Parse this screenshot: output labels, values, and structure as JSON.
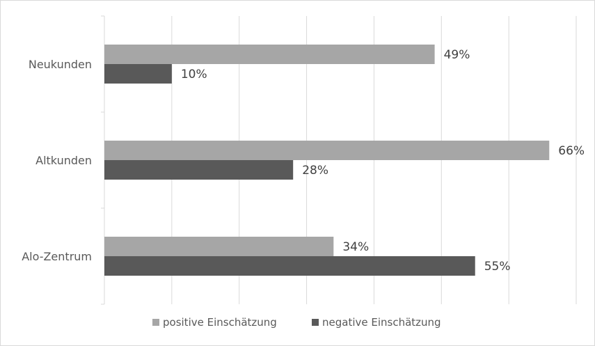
{
  "chart_data": {
    "type": "bar",
    "orientation": "horizontal",
    "categories": [
      "Neukunden",
      "Altkunden",
      "Alo-Zentrum"
    ],
    "series": [
      {
        "name": "positive Einschätzung",
        "values": [
          49,
          66,
          34
        ],
        "labels": [
          "49%",
          "66%",
          "34%"
        ],
        "color": "#a6a6a6"
      },
      {
        "name": "negative Einschätzung",
        "values": [
          10,
          28,
          55
        ],
        "labels": [
          "10%",
          "28%",
          "55%"
        ],
        "color": "#595959"
      }
    ],
    "xlim": [
      0,
      70
    ],
    "x_gridline_step": 10,
    "x_tick_labels_shown": false,
    "grid": true,
    "legend_position": "bottom",
    "title": "",
    "xlabel": "",
    "ylabel": ""
  }
}
